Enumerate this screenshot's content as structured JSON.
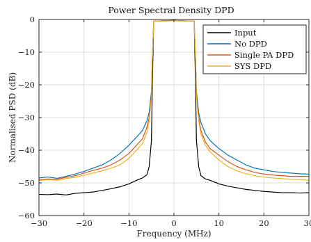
{
  "chart_data": {
    "type": "line",
    "title": "Power Spectral Density DPD",
    "xlabel": "Frequency (MHz)",
    "ylabel": "Normalised PSD (dB)",
    "xlim": [
      -30,
      30
    ],
    "ylim": [
      -60,
      0
    ],
    "xticks": [
      -30,
      -20,
      -10,
      0,
      10,
      20,
      30
    ],
    "yticks": [
      -60,
      -50,
      -40,
      -30,
      -20,
      -10,
      0
    ],
    "xtick_labels": [
      "−30",
      "−20",
      "−10",
      "0",
      "10",
      "20",
      "30"
    ],
    "ytick_labels": [
      "−60",
      "−50",
      "−40",
      "−30",
      "−20",
      "−10",
      "0"
    ],
    "grid": true,
    "legend_position": "top-right",
    "series": [
      {
        "name": "Input",
        "color": "#000000",
        "x": [
          -30,
          -28,
          -26,
          -24,
          -22,
          -20,
          -18,
          -16,
          -14,
          -12,
          -10,
          -8,
          -7,
          -6,
          -5.5,
          -5,
          -4.8,
          -4.5,
          0,
          4.5,
          4.8,
          5,
          5.5,
          6,
          7,
          8,
          10,
          12,
          14,
          16,
          18,
          20,
          22,
          24,
          26,
          28,
          30
        ],
        "y": [
          -53.5,
          -53.6,
          -53.4,
          -53.7,
          -53.2,
          -53.0,
          -52.8,
          -52.3,
          -51.8,
          -51.2,
          -50.3,
          -49.0,
          -48.5,
          -47.5,
          -45.0,
          -37.0,
          -20.0,
          -0.5,
          -0.3,
          -0.5,
          -20.0,
          -37.0,
          -45.0,
          -47.8,
          -48.8,
          -49.2,
          -50.3,
          -51.0,
          -51.5,
          -52.0,
          -52.3,
          -52.6,
          -52.8,
          -53.0,
          -53.0,
          -53.1,
          -53.0
        ]
      },
      {
        "name": "No DPD",
        "color": "#0072BD",
        "x": [
          -30,
          -28,
          -26,
          -24,
          -22,
          -20,
          -18,
          -16,
          -14,
          -12,
          -10,
          -8,
          -7,
          -6,
          -5.5,
          -5,
          -4.8,
          -4.5,
          0,
          4.5,
          4.8,
          5,
          5.5,
          6,
          7,
          8,
          10,
          12,
          14,
          16,
          18,
          20,
          22,
          24,
          26,
          28,
          30
        ],
        "y": [
          -48.5,
          -48.2,
          -48.6,
          -48.0,
          -47.3,
          -46.5,
          -45.5,
          -44.5,
          -43.0,
          -41.0,
          -38.5,
          -35.5,
          -34.0,
          -31.0,
          -28.5,
          -22.0,
          -12.0,
          -0.5,
          -0.3,
          -0.5,
          -12.0,
          -22.0,
          -28.5,
          -31.5,
          -35.0,
          -37.0,
          -39.5,
          -41.5,
          -43.0,
          -44.5,
          -45.5,
          -46.0,
          -46.5,
          -46.8,
          -47.0,
          -47.2,
          -47.3
        ]
      },
      {
        "name": "Single PA DPD",
        "color": "#D95319",
        "x": [
          -30,
          -28,
          -26,
          -24,
          -22,
          -20,
          -18,
          -16,
          -14,
          -12,
          -10,
          -8,
          -7,
          -6,
          -5.5,
          -5,
          -4.8,
          -4.5,
          0,
          4.5,
          4.8,
          5,
          5.5,
          6,
          7,
          8,
          10,
          12,
          14,
          16,
          18,
          20,
          22,
          24,
          26,
          28,
          30
        ],
        "y": [
          -49.0,
          -48.8,
          -48.9,
          -48.3,
          -47.8,
          -47.0,
          -46.2,
          -45.5,
          -44.5,
          -43.0,
          -41.0,
          -38.0,
          -36.5,
          -33.0,
          -30.0,
          -23.0,
          -12.0,
          -0.5,
          -0.4,
          -0.5,
          -12.0,
          -23.0,
          -30.0,
          -34.0,
          -37.5,
          -39.5,
          -41.5,
          -43.5,
          -45.0,
          -46.0,
          -46.8,
          -47.3,
          -47.6,
          -47.8,
          -48.0,
          -48.0,
          -48.0
        ]
      },
      {
        "name": "SYS DPD",
        "color": "#EDB120",
        "x": [
          -30,
          -28,
          -26,
          -24,
          -22,
          -20,
          -18,
          -16,
          -14,
          -12,
          -10,
          -8,
          -7,
          -6,
          -5.5,
          -5,
          -4.8,
          -4.5,
          0,
          4.5,
          4.8,
          5,
          5.5,
          6,
          7,
          8,
          10,
          12,
          14,
          16,
          18,
          20,
          22,
          24,
          26,
          28,
          30
        ],
        "y": [
          -49.3,
          -49.0,
          -49.2,
          -48.7,
          -48.3,
          -47.7,
          -47.0,
          -46.3,
          -45.5,
          -44.5,
          -42.5,
          -39.5,
          -38.0,
          -34.5,
          -31.0,
          -24.0,
          -12.0,
          -0.5,
          -0.4,
          -0.5,
          -12.0,
          -24.0,
          -31.0,
          -35.0,
          -38.5,
          -40.5,
          -43.0,
          -45.0,
          -46.3,
          -47.2,
          -47.8,
          -48.2,
          -48.5,
          -48.7,
          -48.9,
          -49.0,
          -49.2
        ]
      }
    ]
  }
}
